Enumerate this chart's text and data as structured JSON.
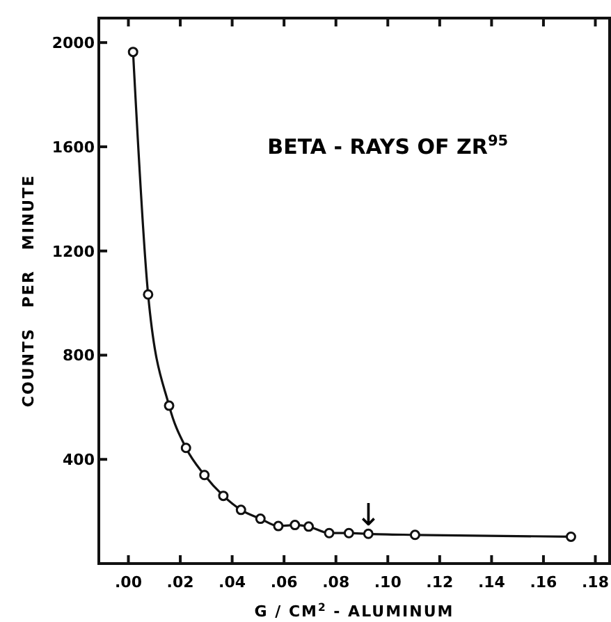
{
  "chart_data": {
    "type": "line",
    "title": "BETA - RAYS OF ZR$^{95}$",
    "xlabel": "G / CM$^{2}$ - ALUMINUM",
    "ylabel": "COUNTS   PER   MINUTE",
    "x": [
      0.0018,
      0.0076,
      0.0157,
      0.0222,
      0.0293,
      0.0366,
      0.0434,
      0.0509,
      0.0578,
      0.0642,
      0.0695,
      0.0774,
      0.085,
      0.0925,
      0.1105,
      0.1706
    ],
    "series": [
      {
        "color": "#111111",
        "values": [
          1964,
          1033,
          606,
          444,
          340,
          260,
          206,
          172,
          144,
          148,
          142,
          117,
          117,
          114,
          110,
          103
        ]
      }
    ],
    "marker": "circle",
    "xlim": [
      -0.0114,
      0.1855
    ],
    "ylim": [
      0,
      2094
    ],
    "xticks": [
      {
        "value": 0,
        "label": ".00"
      },
      {
        "value": 0.02,
        "label": ".02"
      },
      {
        "value": 0.04,
        "label": ".04"
      },
      {
        "value": 0.06,
        "label": ".06"
      },
      {
        "value": 0.08,
        "label": ".08"
      },
      {
        "value": 0.1,
        "label": ".10"
      },
      {
        "value": 0.12,
        "label": ".12"
      },
      {
        "value": 0.14,
        "label": ".14"
      },
      {
        "value": 0.16,
        "label": ".16"
      },
      {
        "value": 0.18,
        "label": ".18"
      }
    ],
    "yticks": [
      400,
      800,
      1200,
      1600,
      2000
    ],
    "annotations": [
      {
        "text": "↓",
        "x": 0.0925,
        "y": 114
      }
    ]
  }
}
